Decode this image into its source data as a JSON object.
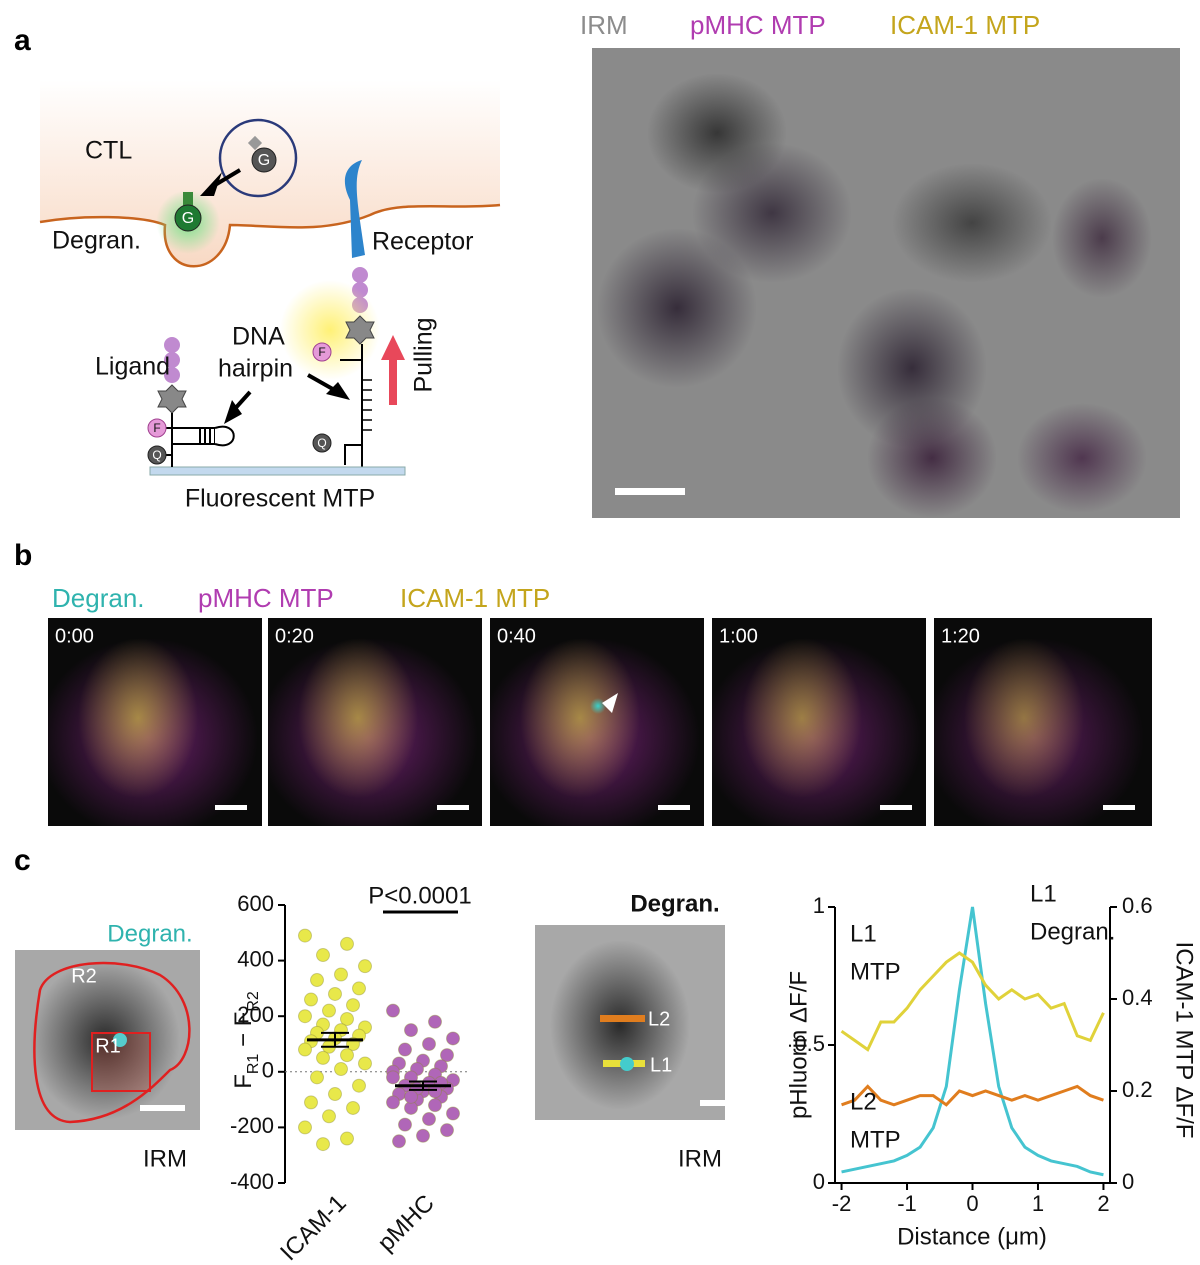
{
  "panel_labels": [
    "a",
    "b",
    "c"
  ],
  "schematic": {
    "cell": "CTL",
    "vesicle_marker": "G",
    "granule_marker": "G",
    "degranulation": "Degran.",
    "receptor": "Receptor",
    "ligand": "Ligand",
    "hairpin": [
      "DNA",
      "hairpin"
    ],
    "pulling": "Pulling",
    "fluorophore": "F",
    "quencher": "Q",
    "caption": "Fluorescent MTP"
  },
  "overview_image": {
    "legend": [
      {
        "name": "IRM",
        "color": "#8c8c8c"
      },
      {
        "name": "pMHC MTP",
        "color": "#b03cb0"
      },
      {
        "name": "ICAM-1 MTP",
        "color": "#c4a51c"
      }
    ]
  },
  "timelapse": {
    "legend": [
      {
        "name": "Degran.",
        "color": "#2fb3ae"
      },
      {
        "name": "pMHC MTP",
        "color": "#b03cb0"
      },
      {
        "name": "ICAM-1 MTP",
        "color": "#c4a51c"
      }
    ],
    "frames": [
      "0:00",
      "0:20",
      "0:40",
      "1:00",
      "1:20"
    ]
  },
  "roi_image": {
    "title": "Degran.",
    "regions": [
      "R1",
      "R2"
    ],
    "caption": "IRM"
  },
  "line_image": {
    "title": "Degran.",
    "lines": [
      "L1",
      "L2"
    ],
    "caption": "IRM"
  },
  "chart_data": [
    {
      "type": "strip",
      "categories": [
        "ICAM-1",
        "pMHC"
      ],
      "colors": [
        "#e8e84a",
        "#b066b8"
      ],
      "values": [
        [
          490,
          460,
          420,
          380,
          350,
          330,
          300,
          280,
          260,
          240,
          220,
          200,
          190,
          170,
          160,
          150,
          140,
          130,
          120,
          110,
          100,
          90,
          80,
          60,
          50,
          30,
          10,
          -20,
          -50,
          -80,
          -110,
          -130,
          -160,
          -200,
          -240,
          -260
        ],
        [
          220,
          180,
          150,
          120,
          100,
          80,
          60,
          40,
          30,
          20,
          10,
          0,
          -10,
          -20,
          -30,
          -40,
          -50,
          -60,
          -70,
          -80,
          -90,
          -100,
          -110,
          -120,
          -130,
          -150,
          -170,
          -190,
          -210,
          -230,
          -250,
          -40,
          -60,
          -20,
          -70,
          -90
        ]
      ],
      "means": [
        115,
        -50
      ],
      "sem": [
        25,
        15
      ],
      "ylim": [
        -400,
        600
      ],
      "yticks": [
        -400,
        -200,
        0,
        200,
        400,
        600
      ],
      "zero_line": true,
      "ylabel": [
        "F",
        "R1",
        " − F",
        "R2"
      ],
      "annotation": "P<0.0001"
    },
    {
      "type": "line",
      "x": [
        -2,
        -1.8,
        -1.6,
        -1.4,
        -1.2,
        -1,
        -0.8,
        -0.6,
        -0.4,
        -0.2,
        0,
        0.2,
        0.4,
        0.6,
        0.8,
        1,
        1.2,
        1.4,
        1.6,
        1.8,
        2
      ],
      "series": [
        {
          "label_lines": [
            "L1",
            "Degran."
          ],
          "color": "#45c4d0",
          "values": [
            0.04,
            0.05,
            0.06,
            0.07,
            0.08,
            0.1,
            0.13,
            0.2,
            0.35,
            0.7,
            1.0,
            0.65,
            0.35,
            0.2,
            0.13,
            0.1,
            0.08,
            0.07,
            0.06,
            0.04,
            0.03
          ]
        },
        {
          "label_lines": [
            "L1",
            "MTP"
          ],
          "color": "#e0d23a",
          "label_color": "#c4a51c",
          "axis": "y2",
          "values": [
            0.33,
            0.31,
            0.29,
            0.35,
            0.35,
            0.38,
            0.42,
            0.45,
            0.48,
            0.5,
            0.48,
            0.43,
            0.4,
            0.42,
            0.4,
            0.41,
            0.38,
            0.39,
            0.32,
            0.31,
            0.37
          ]
        },
        {
          "label_lines": [
            "L2",
            "MTP"
          ],
          "color": "#e07d1e",
          "label_color": "#eda030",
          "axis": "y2",
          "values": [
            0.17,
            0.18,
            0.21,
            0.18,
            0.17,
            0.18,
            0.19,
            0.19,
            0.17,
            0.2,
            0.19,
            0.2,
            0.19,
            0.18,
            0.19,
            0.18,
            0.19,
            0.2,
            0.21,
            0.19,
            0.18
          ]
        }
      ],
      "xlim": [
        -2.1,
        2.1
      ],
      "xticks": [
        -2,
        -1,
        0,
        1,
        2
      ],
      "ylim": [
        0,
        1
      ],
      "yticks": [
        0,
        0.5,
        1
      ],
      "y2lim": [
        0,
        0.6
      ],
      "y2ticks": [
        0,
        0.2,
        0.4,
        0.6
      ],
      "xlabel": "Distance (μm)",
      "ylabel": "pHluorin ΔF/F",
      "y2label": "ICAM-1 MTP ΔF/F"
    }
  ]
}
